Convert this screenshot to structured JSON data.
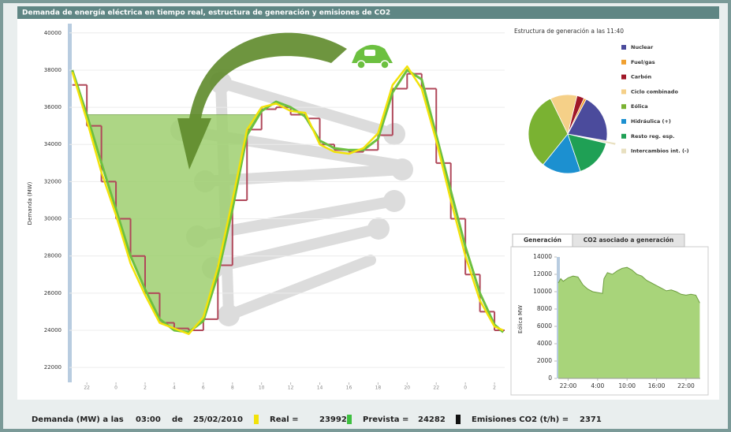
{
  "status": {
    "label": "Demanda (MW) a las",
    "time": "03:00",
    "of": "de",
    "date": "25/02/2010",
    "real_label": "Real =",
    "real": 23992,
    "forecast_label": "Prevista =",
    "forecast": 24282,
    "co2_label": "Emisiones CO2 (t/h) =",
    "co2": 2371
  },
  "tabs": [
    "Generación",
    "CO2 asociado a generación"
  ],
  "chart_data": [
    {
      "type": "line",
      "title": "Demanda de energía eléctrica en tiempo real, estructura de generación y emisiones de CO2",
      "y_label": "Demanda (MW)",
      "x": [
        21,
        22,
        23,
        24,
        25,
        26,
        27,
        28,
        29,
        30,
        31,
        32,
        33,
        34,
        35,
        36,
        37,
        38,
        39,
        40,
        41,
        42,
        43,
        44,
        45,
        46,
        47,
        48,
        49,
        50,
        50.6
      ],
      "series": [
        {
          "color": "#b0485a",
          "step": true,
          "values": [
            37200,
            35000,
            32000,
            30000,
            28000,
            26000,
            24400,
            24100,
            24000,
            24600,
            27500,
            31000,
            34800,
            35900,
            36000,
            35600,
            35400,
            34000,
            33700,
            33600,
            33700,
            34500,
            37000,
            37800,
            37000,
            33000,
            30000,
            27000,
            25000,
            24000,
            24000
          ]
        },
        {
          "name": "Prevista",
          "color": "#6cc040",
          "values": [
            38000,
            35600,
            33000,
            30500,
            28000,
            26200,
            24600,
            24000,
            23900,
            24500,
            27000,
            30500,
            34500,
            35800,
            36300,
            36000,
            35500,
            34200,
            33800,
            33700,
            33700,
            34300,
            36800,
            38000,
            37500,
            34500,
            31500,
            28500,
            26000,
            24300,
            23900
          ]
        },
        {
          "name": "Real",
          "color": "#f2e20a",
          "values": [
            37900,
            35300,
            32500,
            30200,
            27600,
            25900,
            24400,
            24100,
            23800,
            24700,
            27400,
            31000,
            34800,
            36000,
            36200,
            35800,
            35700,
            34000,
            33600,
            33500,
            33800,
            34600,
            37200,
            38200,
            37000,
            34200,
            31000,
            28000,
            25600,
            24200,
            24000
          ]
        }
      ],
      "xlim": [
        20.8,
        50.7
      ],
      "xticks": [
        22,
        {
          "value": 24,
          "label": "0"
        },
        {
          "value": 26,
          "label": "2"
        },
        {
          "value": 28,
          "label": "4"
        },
        {
          "value": 30,
          "label": "6"
        },
        {
          "value": 32,
          "label": "8"
        },
        {
          "value": 34,
          "label": "10"
        },
        {
          "value": 36,
          "label": "12"
        },
        {
          "value": 38,
          "label": "14"
        },
        {
          "value": 40,
          "label": "16"
        },
        {
          "value": 42,
          "label": "18"
        },
        {
          "value": 44,
          "label": "20"
        },
        {
          "value": 46,
          "label": "22"
        },
        {
          "value": 48,
          "label": "0"
        },
        {
          "value": 50,
          "label": "2"
        }
      ],
      "ylim": [
        21200,
        40500
      ],
      "yticks": [
        22000,
        24000,
        26000,
        28000,
        30000,
        32000,
        34000,
        36000,
        38000,
        40000
      ],
      "grid": true
    },
    {
      "type": "pie",
      "title": "Estructura de generación a las 11:40",
      "categories": [
        "Nuclear",
        "Fuel/gas",
        "Carbón",
        "Ciclo combinado",
        "Eólica",
        "Hidráulica (+)",
        "Resto reg. esp.",
        "Intercambios int. (-)"
      ],
      "values": [
        20,
        1,
        3,
        11,
        32,
        16,
        16,
        1
      ],
      "colors": [
        "#4b4b9c",
        "#f0a030",
        "#a01828",
        "#f5d088",
        "#7ab232",
        "#1c90d0",
        "#1fa055",
        "#e8e0c0"
      ]
    },
    {
      "type": "area",
      "y_label": "Eólica MW",
      "color": "#a8d47a",
      "line_color": "#6e9e40",
      "x": [
        20,
        20.5,
        21,
        22,
        23,
        24,
        25,
        26,
        27,
        28,
        29,
        29.3,
        30,
        31,
        32,
        33,
        34,
        35,
        36,
        37,
        38,
        39,
        40,
        41,
        42,
        43,
        44,
        45,
        46,
        47,
        48,
        48.8
      ],
      "values": [
        11000,
        11500,
        11200,
        11600,
        11800,
        11700,
        10800,
        10300,
        10000,
        9900,
        9800,
        11500,
        12200,
        12000,
        12400,
        12700,
        12800,
        12500,
        12000,
        11800,
        11300,
        11000,
        10700,
        10400,
        10100,
        10200,
        10000,
        9700,
        9600,
        9700,
        9600,
        8700
      ],
      "xlim": [
        20,
        48.9
      ],
      "xticks": [
        {
          "value": 22,
          "label": "22:00"
        },
        {
          "value": 28,
          "label": "4:00"
        },
        {
          "value": 34,
          "label": "10:00"
        },
        {
          "value": 40,
          "label": "16:00"
        },
        {
          "value": 46,
          "label": "22:00"
        }
      ],
      "ylim": [
        0,
        14000
      ],
      "yticks": [
        0,
        2000,
        4000,
        6000,
        8000,
        10000,
        12000,
        14000
      ]
    }
  ]
}
